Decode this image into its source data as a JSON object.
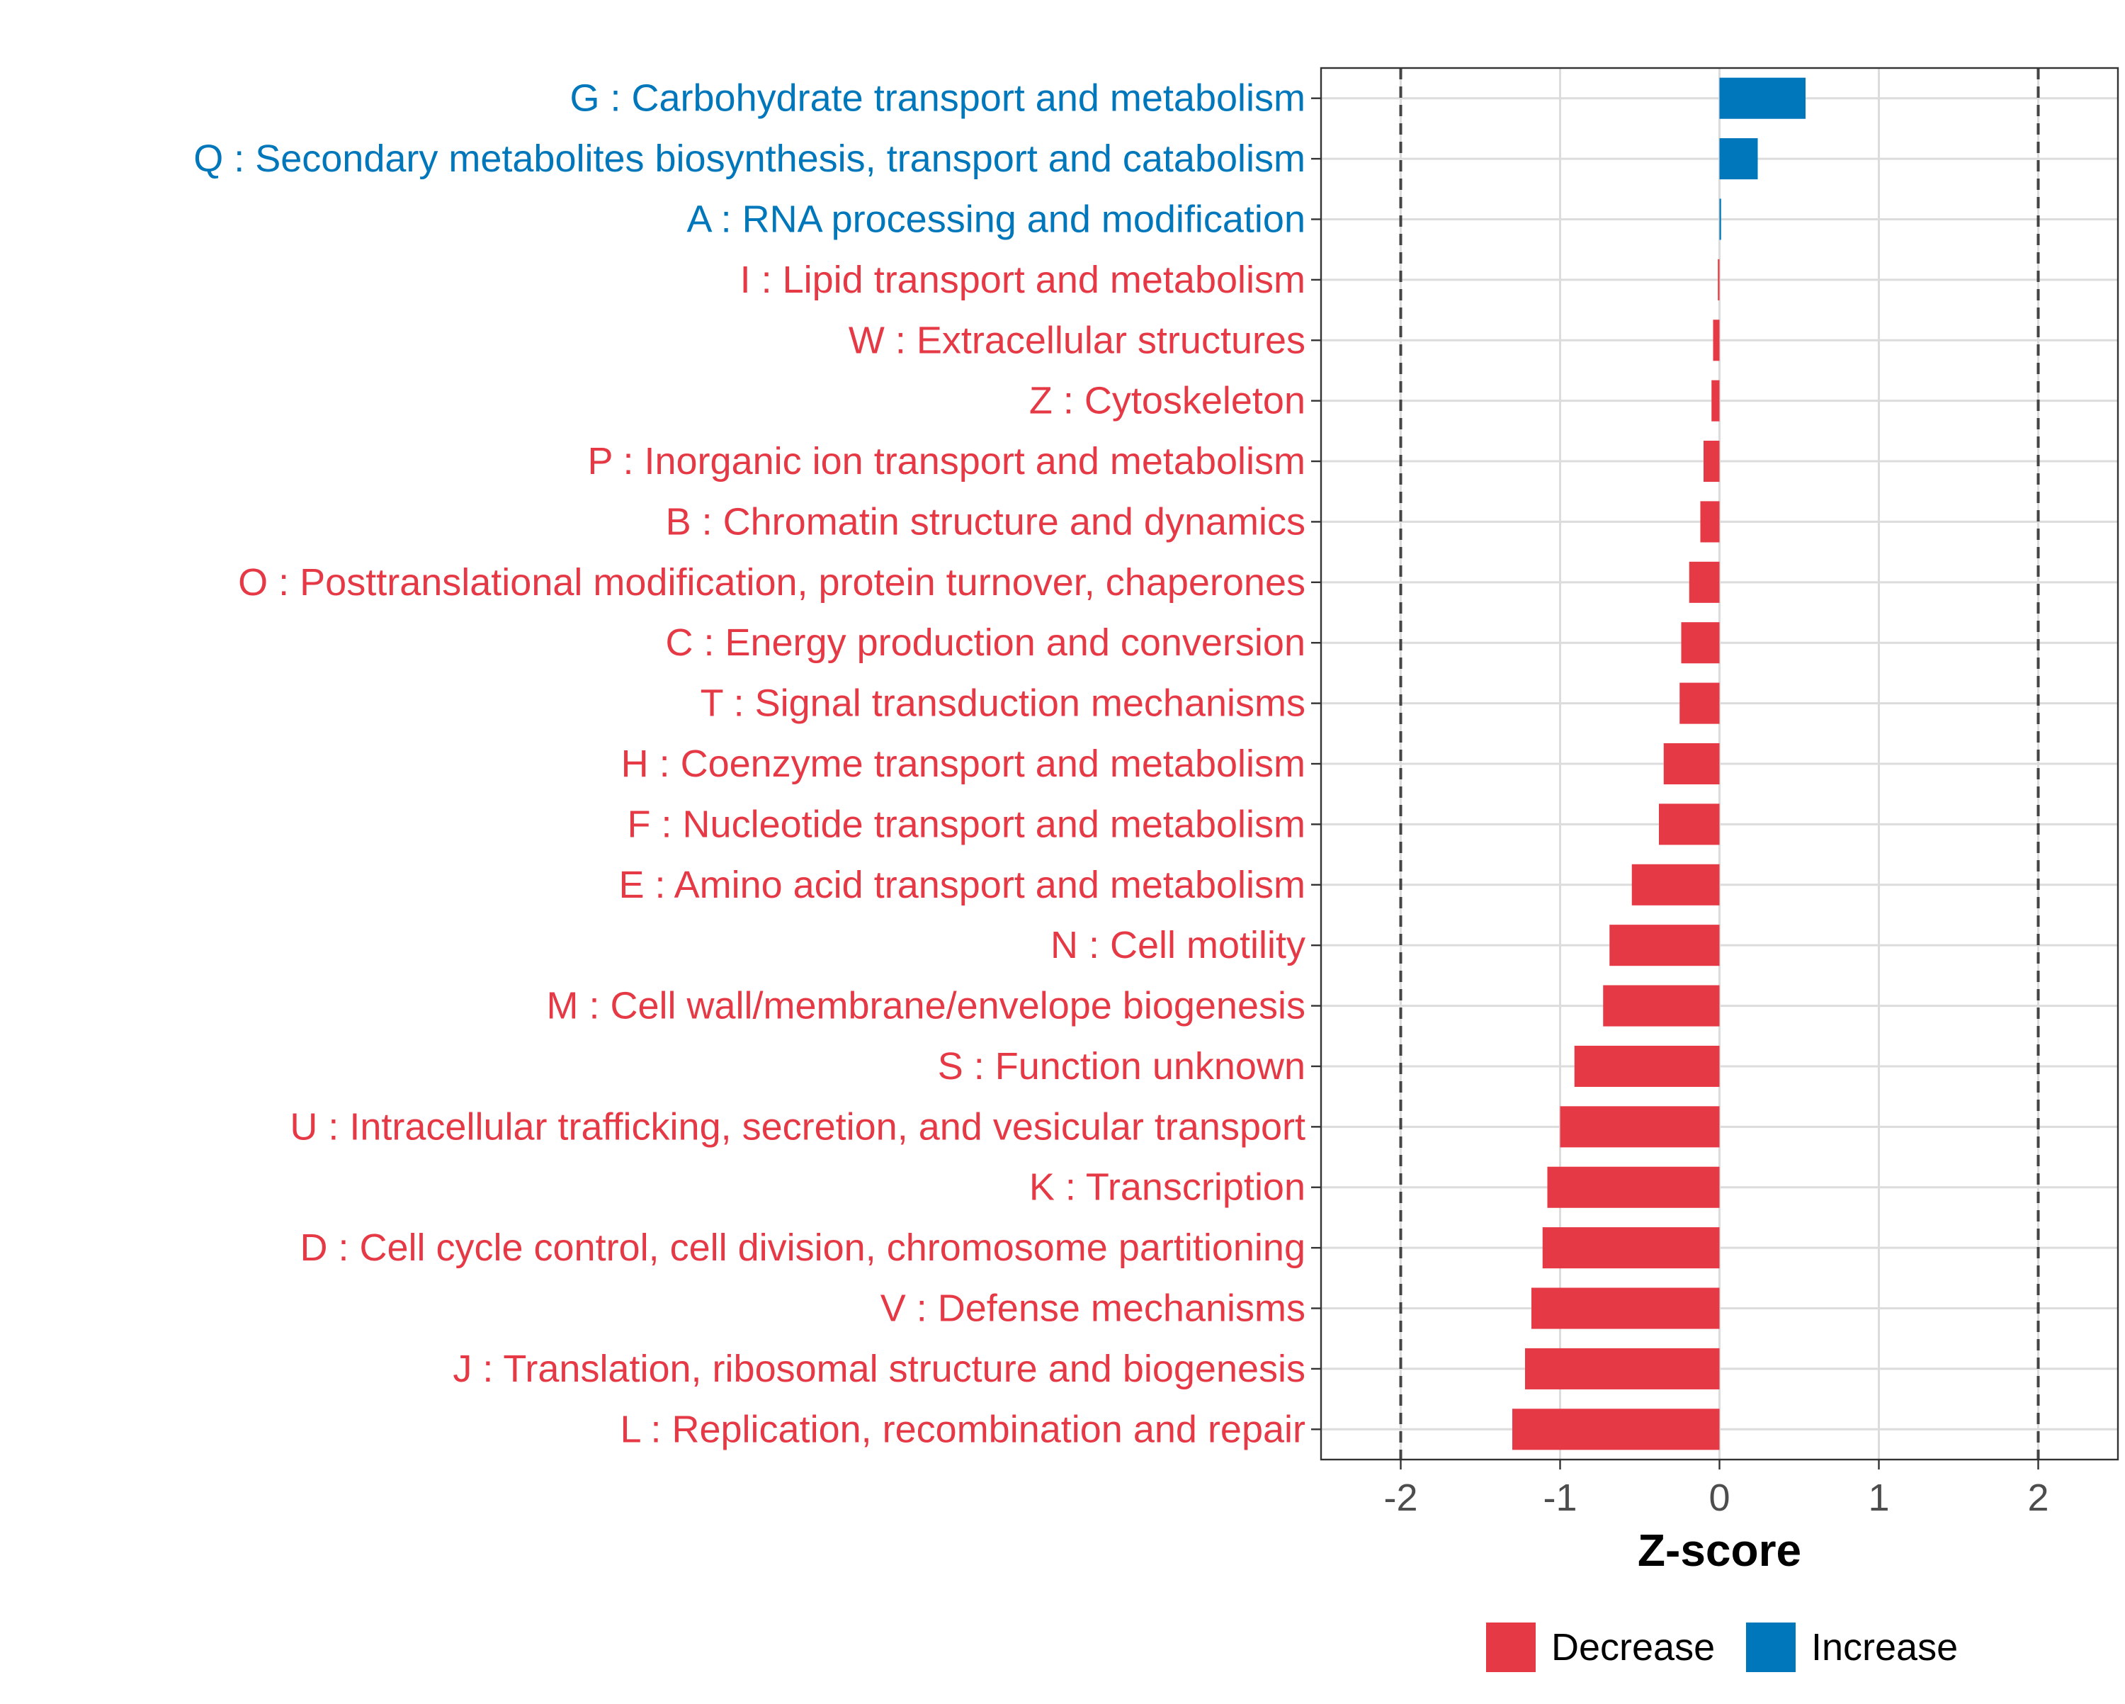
{
  "chart_data": {
    "type": "bar",
    "orientation": "horizontal",
    "xlabel": "Z-score",
    "xlim": [
      -2.5,
      2.5
    ],
    "xticks": [
      -2,
      -1,
      0,
      1,
      2
    ],
    "xtick_labels": [
      "-2",
      "-1",
      "0",
      "1",
      "2"
    ],
    "reference_lines": [
      -2,
      2
    ],
    "grid": true,
    "legend": {
      "position": "bottom",
      "entries": [
        {
          "name": "Decrease",
          "color": "#E63946"
        },
        {
          "name": "Increase",
          "color": "#0077BB"
        }
      ]
    },
    "categories": [
      {
        "label": "G : Carbohydrate transport and metabolism",
        "value": 0.54,
        "direction": "Increase"
      },
      {
        "label": "Q : Secondary metabolites biosynthesis, transport and catabolism",
        "value": 0.24,
        "direction": "Increase"
      },
      {
        "label": "A : RNA processing and modification",
        "value": 0.01,
        "direction": "Increase"
      },
      {
        "label": "I : Lipid transport and metabolism",
        "value": -0.01,
        "direction": "Decrease"
      },
      {
        "label": "W : Extracellular structures",
        "value": -0.04,
        "direction": "Decrease"
      },
      {
        "label": "Z : Cytoskeleton",
        "value": -0.05,
        "direction": "Decrease"
      },
      {
        "label": "P : Inorganic ion transport and metabolism",
        "value": -0.1,
        "direction": "Decrease"
      },
      {
        "label": "B : Chromatin structure and dynamics",
        "value": -0.12,
        "direction": "Decrease"
      },
      {
        "label": "O : Posttranslational modification, protein turnover, chaperones",
        "value": -0.19,
        "direction": "Decrease"
      },
      {
        "label": "C : Energy production and conversion",
        "value": -0.24,
        "direction": "Decrease"
      },
      {
        "label": "T : Signal transduction mechanisms",
        "value": -0.25,
        "direction": "Decrease"
      },
      {
        "label": "H : Coenzyme transport and metabolism",
        "value": -0.35,
        "direction": "Decrease"
      },
      {
        "label": "F : Nucleotide transport and metabolism",
        "value": -0.38,
        "direction": "Decrease"
      },
      {
        "label": "E : Amino acid transport and metabolism",
        "value": -0.55,
        "direction": "Decrease"
      },
      {
        "label": "N : Cell motility",
        "value": -0.69,
        "direction": "Decrease"
      },
      {
        "label": "M : Cell wall/membrane/envelope biogenesis",
        "value": -0.73,
        "direction": "Decrease"
      },
      {
        "label": "S : Function unknown",
        "value": -0.91,
        "direction": "Decrease"
      },
      {
        "label": "U : Intracellular trafficking, secretion, and vesicular transport",
        "value": -1.0,
        "direction": "Decrease"
      },
      {
        "label": "K : Transcription",
        "value": -1.08,
        "direction": "Decrease"
      },
      {
        "label": "D : Cell cycle control, cell division, chromosome partitioning",
        "value": -1.11,
        "direction": "Decrease"
      },
      {
        "label": "V : Defense mechanisms",
        "value": -1.18,
        "direction": "Decrease"
      },
      {
        "label": "J : Translation, ribosomal structure and biogenesis",
        "value": -1.22,
        "direction": "Decrease"
      },
      {
        "label": "L : Replication, recombination and repair",
        "value": -1.3,
        "direction": "Decrease"
      }
    ]
  }
}
